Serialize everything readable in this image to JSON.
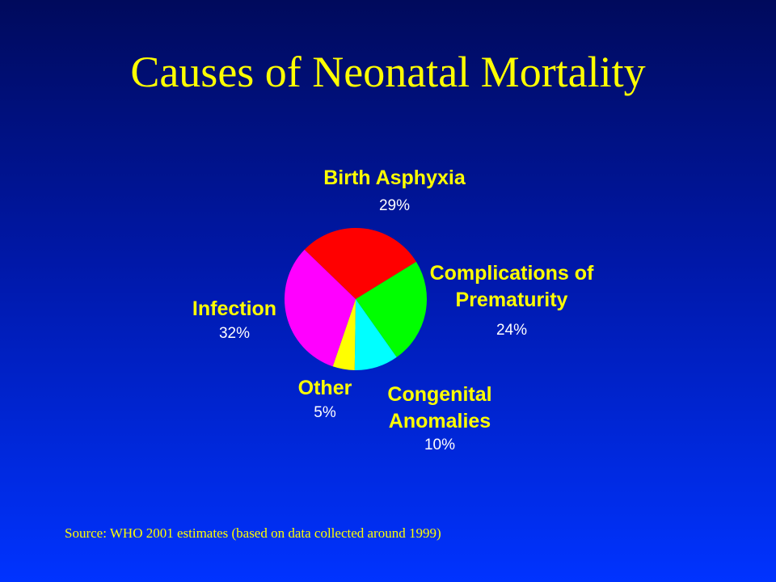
{
  "chart_data": {
    "type": "pie",
    "title": "Causes of Neonatal Mortality",
    "categories": [
      "Birth Asphyxia",
      "Complications of Prematurity",
      "Congenital Anomalies",
      "Other",
      "Infection"
    ],
    "values": [
      29,
      24,
      10,
      5,
      32
    ],
    "value_labels": [
      "29%",
      "24%",
      "10%",
      "5%",
      "32%"
    ],
    "colors": [
      "#ff0000",
      "#00ff00",
      "#00ffff",
      "#ffff00",
      "#ff00ff"
    ],
    "source": "Source: WHO 2001 estimates (based on data collected around 1999)"
  }
}
